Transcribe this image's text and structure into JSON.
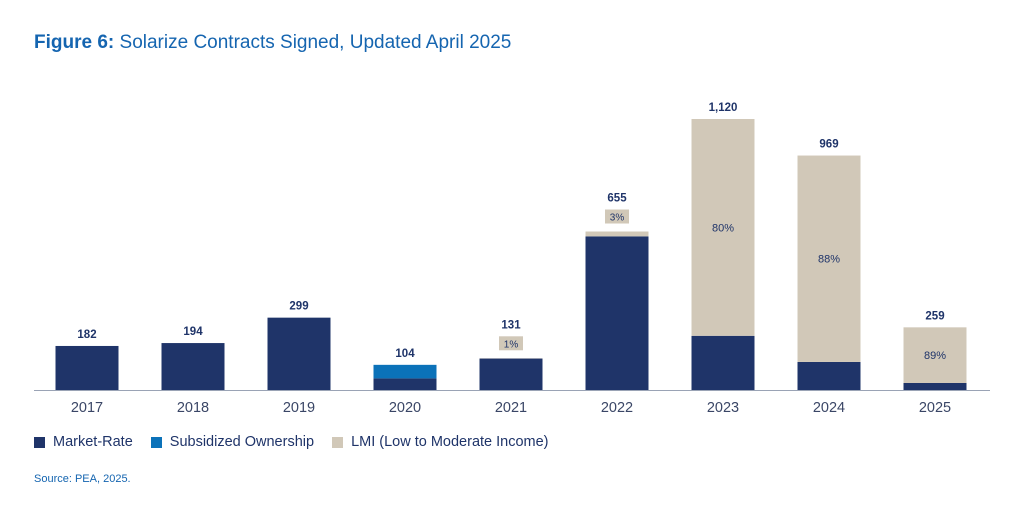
{
  "chart_data": {
    "type": "bar",
    "stacked": true,
    "title_prefix": "Figure 6:",
    "title": "Solarize Contracts Signed, Updated April 2025",
    "categories": [
      "2017",
      "2018",
      "2019",
      "2020",
      "2021",
      "2022",
      "2023",
      "2024",
      "2025"
    ],
    "series": [
      {
        "name": "Market-Rate",
        "color": "#1f3469",
        "values": [
          182,
          194,
          299,
          48,
          130,
          635,
          224,
          116,
          29
        ]
      },
      {
        "name": "Subsidized Ownership",
        "color": "#0b72b9",
        "values": [
          0,
          0,
          0,
          56,
          0,
          0,
          0,
          0,
          0
        ]
      },
      {
        "name": "LMI (Low to Moderate Income)",
        "color": "#d1c8b8",
        "values": [
          0,
          0,
          0,
          0,
          1,
          20,
          896,
          853,
          230
        ]
      }
    ],
    "totals": [
      "182",
      "194",
      "299",
      "104",
      "131",
      "655",
      "1,120",
      "969",
      "259"
    ],
    "lmi_share_labels": [
      "",
      "",
      "",
      "",
      "1%",
      "3%",
      "80%",
      "88%",
      "89%"
    ],
    "ylim": [
      0,
      1150
    ],
    "grid": false,
    "legend_position": "bottom-left",
    "source": "Source: PEA, 2025."
  }
}
